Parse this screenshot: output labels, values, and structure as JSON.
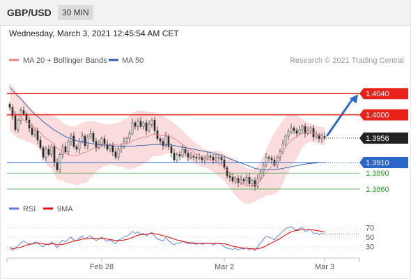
{
  "header": {
    "pair": "GBP/USD",
    "timeframe": "30 MIN",
    "datetime": "Wednesday, March 3, 2021 12:45:54 AM CET"
  },
  "colors": {
    "resistance": "#e8221b",
    "support_strong": "#2a67c9",
    "support": "#2e9a2e",
    "current": "#222222",
    "ma20": "#f08080",
    "ma50": "#2c5ea8",
    "band_fill": "#fbdcdc",
    "candle_up": "#e9eef5",
    "candle_down": "#2a2a2a",
    "rsi": "#5b7be0",
    "rsi_ma": "#e01010",
    "arrow": "#2a67c9"
  },
  "chart_data": [
    {
      "type": "candlestick",
      "legend": [
        {
          "label": "MA 20 + Bollinger Bands",
          "key": "ma20"
        },
        {
          "label": "MA 50",
          "key": "ma50"
        }
      ],
      "credit": "Research © 2021 Trading Central",
      "x_ticks": [
        {
          "label": "Feb 28",
          "index": 33
        },
        {
          "label": "Mar 2",
          "index": 77
        },
        {
          "label": "Mar 3",
          "index": 113
        }
      ],
      "ylim": [
        1.3835,
        1.4085
      ],
      "levels": [
        {
          "value": 1.404,
          "label": "1.4040",
          "style": "resistance",
          "box": true
        },
        {
          "value": 1.4,
          "label": "1.4000",
          "style": "resistance",
          "box": true
        },
        {
          "value": 1.3956,
          "label": "1.3956",
          "style": "current",
          "box": true
        },
        {
          "value": 1.391,
          "label": "1.3910",
          "style": "support_strong",
          "box": true
        },
        {
          "value": 1.389,
          "label": "1.3890",
          "style": "support",
          "box": false
        },
        {
          "value": 1.386,
          "label": "1.3860",
          "style": "support",
          "box": false
        }
      ],
      "close": [
        1.4014,
        1.3998,
        1.3972,
        1.399,
        1.4008,
        1.4002,
        1.399,
        1.3975,
        1.3963,
        1.397,
        1.3952,
        1.3938,
        1.392,
        1.3935,
        1.3925,
        1.394,
        1.391,
        1.3896,
        1.3925,
        1.394,
        1.393,
        1.395,
        1.396,
        1.394,
        1.3935,
        1.395,
        1.396,
        1.3942,
        1.3958,
        1.3965,
        1.395,
        1.3938,
        1.3945,
        1.3955,
        1.3945,
        1.3935,
        1.3942,
        1.393,
        1.392,
        1.3936,
        1.394,
        1.395,
        1.3955,
        1.3965,
        1.3985,
        1.3978,
        1.3988,
        1.3978,
        1.3985,
        1.397,
        1.3982,
        1.399,
        1.397,
        1.3955,
        1.395,
        1.3942,
        1.396,
        1.394,
        1.3928,
        1.3915,
        1.3925,
        1.3922,
        1.3935,
        1.3928,
        1.392,
        1.3922,
        1.392,
        1.3918,
        1.392,
        1.3915,
        1.3918,
        1.3922,
        1.392,
        1.3915,
        1.3918,
        1.392,
        1.3915,
        1.39,
        1.3885,
        1.3882,
        1.3875,
        1.388,
        1.3872,
        1.3878,
        1.3875,
        1.3882,
        1.387,
        1.3876,
        1.3865,
        1.388,
        1.3892,
        1.3905,
        1.392,
        1.3918,
        1.3915,
        1.3905,
        1.392,
        1.393,
        1.3945,
        1.396,
        1.3968,
        1.3975,
        1.397,
        1.3965,
        1.3972,
        1.3978,
        1.3965,
        1.397,
        1.3975,
        1.3958,
        1.3962,
        1.3955,
        1.396,
        1.3956
      ],
      "ma20": [
        1.4014,
        1.401,
        1.4004,
        1.3998,
        1.3994,
        1.399,
        1.3987,
        1.3983,
        1.3979,
        1.3976,
        1.3971,
        1.3966,
        1.396,
        1.3956,
        1.3952,
        1.3949,
        1.3943,
        1.3937,
        1.3933,
        1.3931,
        1.3927,
        1.3925,
        1.3924,
        1.3923,
        1.3923,
        1.3925,
        1.3928,
        1.3929,
        1.3931,
        1.3934,
        1.3937,
        1.3939,
        1.3941,
        1.3942,
        1.3943,
        1.3943,
        1.3944,
        1.3944,
        1.3944,
        1.3944,
        1.3945,
        1.3946,
        1.3946,
        1.3947,
        1.3951,
        1.3953,
        1.3955,
        1.3956,
        1.3958,
        1.3958,
        1.396,
        1.3963,
        1.3963,
        1.3962,
        1.3961,
        1.3961,
        1.3961,
        1.396,
        1.3958,
        1.3955,
        1.3952,
        1.3948,
        1.3944,
        1.3941,
        1.3937,
        1.3934,
        1.393,
        1.3926,
        1.3923,
        1.392,
        1.3918,
        1.3916,
        1.3914,
        1.3912,
        1.391,
        1.3908,
        1.3905,
        1.3901,
        1.3896,
        1.3891,
        1.3886,
        1.3881,
        1.3876,
        1.3872,
        1.3868,
        1.3866,
        1.3865,
        1.3866,
        1.3868,
        1.3872,
        1.3877,
        1.3883,
        1.3891,
        1.3897,
        1.3903,
        1.3908,
        1.3914,
        1.3921,
        1.393,
        1.3939,
        1.3946,
        1.3952,
        1.3956,
        1.3959,
        1.3962,
        1.3965,
        1.3966,
        1.3966,
        1.3966,
        1.3965,
        1.3963,
        1.3961,
        1.396,
        1.3959
      ],
      "upper": [
        1.406,
        1.4055,
        1.4048,
        1.404,
        1.4034,
        1.4028,
        1.4022,
        1.4016,
        1.401,
        1.4006,
        1.4003,
        1.4,
        1.4002,
        1.4003,
        1.4002,
        1.4,
        1.3998,
        1.3995,
        1.399,
        1.3985,
        1.3982,
        1.398,
        1.3978,
        1.3978,
        1.3979,
        1.3982,
        1.3985,
        1.3987,
        1.3988,
        1.3988,
        1.3988,
        1.3987,
        1.3985,
        1.3984,
        1.3983,
        1.3982,
        1.3982,
        1.3983,
        1.3984,
        1.3986,
        1.3988,
        1.3991,
        1.3994,
        1.3998,
        1.4003,
        1.4006,
        1.4008,
        1.4008,
        1.4008,
        1.4006,
        1.4005,
        1.4005,
        1.4004,
        1.4002,
        1.4,
        1.3998,
        1.3995,
        1.3992,
        1.3988,
        1.3984,
        1.398,
        1.3975,
        1.397,
        1.3965,
        1.396,
        1.3955,
        1.395,
        1.3946,
        1.3942,
        1.3938,
        1.3935,
        1.3933,
        1.3932,
        1.3932,
        1.3932,
        1.3932,
        1.393,
        1.3927,
        1.3924,
        1.3921,
        1.3918,
        1.3914,
        1.391,
        1.3906,
        1.3902,
        1.39,
        1.3898,
        1.3898,
        1.39,
        1.3904,
        1.3912,
        1.3922,
        1.3934,
        1.3946,
        1.3958,
        1.3966,
        1.3974,
        1.3982,
        1.399,
        1.3996,
        1.4,
        1.4002,
        1.4002,
        1.4,
        1.3996,
        1.3992,
        1.3988,
        1.3985,
        1.3983,
        1.3981,
        1.3979,
        1.3978,
        1.3977,
        1.3976
      ],
      "lower": [
        1.3968,
        1.3965,
        1.396,
        1.3956,
        1.3954,
        1.3952,
        1.395,
        1.3948,
        1.3946,
        1.3944,
        1.3939,
        1.3932,
        1.3918,
        1.3909,
        1.3902,
        1.3898,
        1.3888,
        1.3879,
        1.3876,
        1.3877,
        1.3872,
        1.387,
        1.387,
        1.3868,
        1.3867,
        1.3868,
        1.3871,
        1.3871,
        1.3874,
        1.388,
        1.3886,
        1.3891,
        1.3897,
        1.39,
        1.3903,
        1.3904,
        1.3906,
        1.3905,
        1.3904,
        1.3902,
        1.3902,
        1.3901,
        1.3898,
        1.3896,
        1.3899,
        1.39,
        1.3902,
        1.3904,
        1.3908,
        1.391,
        1.3915,
        1.3921,
        1.3922,
        1.3922,
        1.3922,
        1.3924,
        1.3927,
        1.3928,
        1.3928,
        1.3926,
        1.3924,
        1.3921,
        1.3918,
        1.3917,
        1.3914,
        1.3913,
        1.391,
        1.3906,
        1.3904,
        1.3902,
        1.3901,
        1.3899,
        1.3896,
        1.3892,
        1.3888,
        1.3884,
        1.388,
        1.3875,
        1.3868,
        1.3861,
        1.3854,
        1.3848,
        1.3842,
        1.3838,
        1.3834,
        1.3832,
        1.3832,
        1.3834,
        1.3836,
        1.384,
        1.3842,
        1.3844,
        1.3848,
        1.3848,
        1.3848,
        1.385,
        1.3854,
        1.386,
        1.387,
        1.3882,
        1.3892,
        1.3902,
        1.391,
        1.3918,
        1.3928,
        1.3938,
        1.3944,
        1.3947,
        1.3949,
        1.3949,
        1.3947,
        1.3944,
        1.3943,
        1.3942
      ],
      "ma50": [
        1.4052,
        1.4046,
        1.404,
        1.4035,
        1.403,
        1.4024,
        1.4018,
        1.4012,
        1.4006,
        1.4001,
        1.3997,
        1.3992,
        1.3987,
        1.3983,
        1.3979,
        1.3975,
        1.3971,
        1.3968,
        1.3965,
        1.3962,
        1.3959,
        1.3957,
        1.3955,
        1.3953,
        1.3951,
        1.395,
        1.3949,
        1.3948,
        1.3947,
        1.3946,
        1.3945,
        1.3944,
        1.3944,
        1.3943,
        1.3943,
        1.3942,
        1.3942,
        1.3942,
        1.3941,
        1.3941,
        1.3941,
        1.3941,
        1.3941,
        1.3941,
        1.3941,
        1.3941,
        1.3942,
        1.3942,
        1.3942,
        1.3943,
        1.3943,
        1.3944,
        1.3944,
        1.3944,
        1.3944,
        1.3944,
        1.3944,
        1.3944,
        1.3943,
        1.3942,
        1.3941,
        1.394,
        1.3939,
        1.3938,
        1.3937,
        1.3936,
        1.3935,
        1.3934,
        1.3933,
        1.3932,
        1.3931,
        1.393,
        1.3929,
        1.3928,
        1.3927,
        1.3925,
        1.3923,
        1.3921,
        1.3919,
        1.3917,
        1.3915,
        1.3913,
        1.3911,
        1.3909,
        1.3907,
        1.3905,
        1.3903,
        1.3901,
        1.3899,
        1.3898,
        1.3897,
        1.3896,
        1.3896,
        1.3896,
        1.3896,
        1.3896,
        1.3897,
        1.3898,
        1.3899,
        1.39,
        1.3901,
        1.3902,
        1.3903,
        1.3904,
        1.3905,
        1.3906,
        1.3907,
        1.3908,
        1.3908,
        1.3909,
        1.3909,
        1.391,
        1.391,
        1.391
      ]
    },
    {
      "type": "line",
      "legend": [
        {
          "label": "RSI",
          "key": "rsi"
        },
        {
          "label": "9MA",
          "key": "rsi_ma"
        }
      ],
      "ylim": [
        15,
        85
      ],
      "y_ticks": [
        70,
        50,
        30
      ],
      "rsi": [
        25,
        22,
        27,
        32,
        38,
        42,
        38,
        36,
        35,
        40,
        38,
        33,
        30,
        36,
        34,
        40,
        35,
        28,
        38,
        44,
        40,
        46,
        50,
        44,
        42,
        48,
        52,
        46,
        50,
        53,
        47,
        43,
        46,
        50,
        45,
        41,
        44,
        40,
        36,
        44,
        46,
        50,
        52,
        56,
        62,
        58,
        61,
        56,
        58,
        52,
        57,
        60,
        52,
        46,
        44,
        42,
        50,
        42,
        38,
        34,
        38,
        37,
        42,
        39,
        36,
        37,
        36,
        35,
        37,
        35,
        36,
        38,
        37,
        34,
        36,
        38,
        35,
        30,
        27,
        26,
        24,
        27,
        23,
        26,
        25,
        28,
        23,
        26,
        22,
        30,
        38,
        45,
        52,
        50,
        48,
        44,
        52,
        56,
        62,
        68,
        70,
        72,
        68,
        65,
        68,
        70,
        62,
        64,
        66,
        57,
        59,
        55,
        58,
        56
      ],
      "rsi_ma": [
        28,
        26,
        27,
        28,
        29,
        31,
        33,
        35,
        36,
        37,
        38,
        37,
        36,
        35,
        35,
        36,
        36,
        34,
        34,
        35,
        36,
        38,
        40,
        42,
        43,
        44,
        46,
        46,
        47,
        48,
        48,
        48,
        47,
        47,
        47,
        46,
        45,
        44,
        43,
        43,
        43,
        44,
        45,
        47,
        49,
        52,
        54,
        55,
        56,
        56,
        57,
        58,
        57,
        56,
        55,
        53,
        52,
        50,
        48,
        46,
        44,
        43,
        41,
        40,
        39,
        38,
        38,
        37,
        37,
        37,
        37,
        37,
        37,
        37,
        37,
        37,
        36,
        36,
        35,
        33,
        31,
        30,
        29,
        28,
        27,
        27,
        26,
        26,
        25,
        26,
        27,
        29,
        32,
        35,
        38,
        41,
        44,
        47,
        51,
        55,
        58,
        61,
        63,
        64,
        65,
        66,
        66,
        66,
        66,
        65,
        64,
        63,
        62,
        61
      ]
    }
  ]
}
